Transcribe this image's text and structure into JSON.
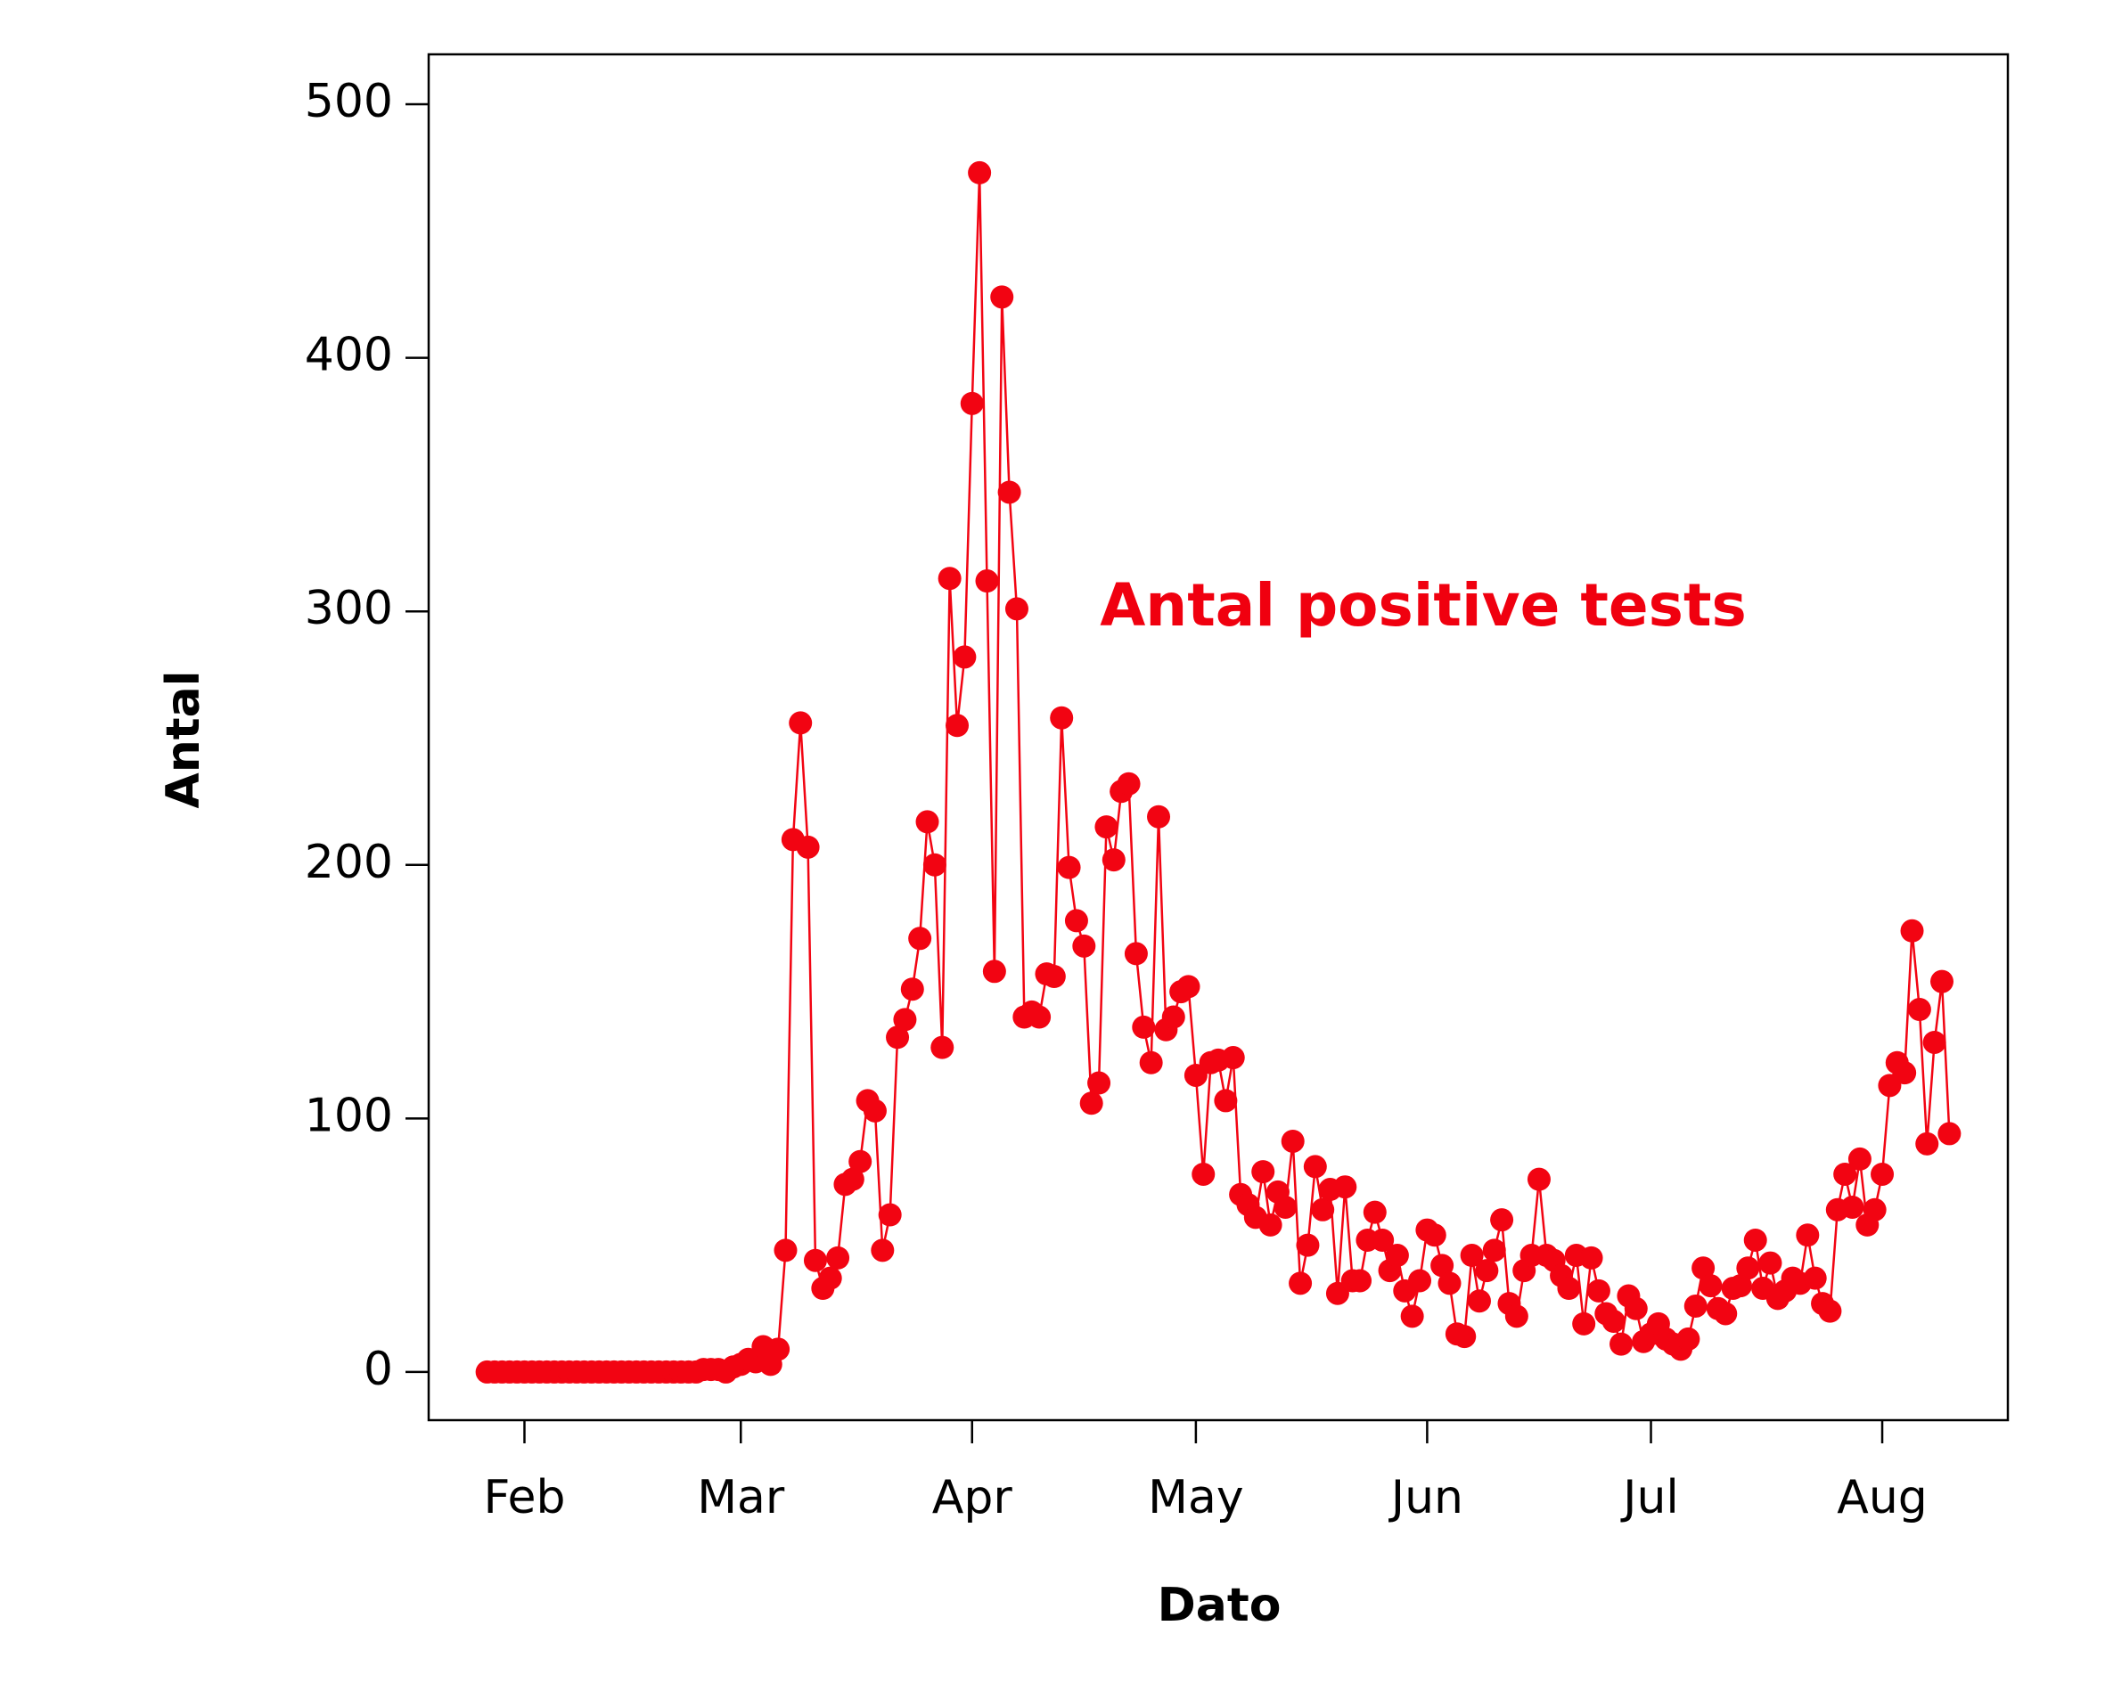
{
  "chart_data": {
    "type": "line",
    "xlabel": "Dato",
    "ylabel": "Antal",
    "annotation": "Antal positive tests",
    "color": "#f20412",
    "x": [
      27,
      28,
      29,
      30,
      31,
      32,
      33,
      34,
      35,
      36,
      37,
      38,
      39,
      40,
      41,
      42,
      43,
      44,
      45,
      46,
      47,
      48,
      49,
      50,
      51,
      52,
      53,
      54,
      55,
      56,
      57,
      58,
      59,
      60,
      61,
      62,
      63,
      64,
      65,
      66,
      67,
      68,
      69,
      70,
      71,
      72,
      73,
      74,
      75,
      76,
      77,
      78,
      79,
      80,
      81,
      82,
      83,
      84,
      85,
      86,
      87,
      88,
      89,
      90,
      91,
      92,
      93,
      94,
      95,
      96,
      97,
      98,
      99,
      100,
      101,
      102,
      103,
      104,
      105,
      106,
      107,
      108,
      109,
      110,
      111,
      112,
      113,
      114,
      115,
      116,
      117,
      118,
      119,
      120,
      121,
      122,
      123,
      124,
      125,
      126,
      127,
      128,
      129,
      130,
      131,
      132,
      133,
      134,
      135,
      136,
      137,
      138,
      139,
      140,
      141,
      142,
      143,
      144,
      145,
      146,
      147,
      148,
      149,
      150,
      151,
      152,
      153,
      154,
      155,
      156,
      157,
      158,
      159,
      160,
      161,
      162,
      163,
      164,
      165,
      166,
      167,
      168,
      169,
      170,
      171,
      172,
      173,
      174,
      175,
      176,
      177,
      178,
      179,
      180,
      181,
      182,
      183,
      184,
      185,
      186,
      187,
      188,
      189,
      190,
      191,
      192,
      193,
      194,
      195,
      196,
      197,
      198,
      199,
      200,
      201,
      202,
      203,
      204,
      205,
      206,
      207,
      208,
      209,
      210,
      211,
      212,
      213,
      214,
      215,
      216,
      217,
      218,
      219,
      220,
      221,
      222,
      223
    ],
    "values": [
      0,
      0,
      0,
      0,
      0,
      0,
      0,
      0,
      0,
      0,
      0,
      0,
      0,
      0,
      0,
      0,
      0,
      0,
      0,
      0,
      0,
      0,
      0,
      0,
      0,
      0,
      0,
      0,
      0,
      1,
      1,
      1,
      0,
      2,
      3,
      5,
      4,
      10,
      3,
      9,
      48,
      210,
      256,
      207,
      44,
      33,
      37,
      45,
      74,
      76,
      83,
      107,
      103,
      48,
      62,
      132,
      139,
      151,
      171,
      217,
      200,
      128,
      313,
      255,
      282,
      382,
      473,
      312,
      158,
      424,
      347,
      301,
      140,
      142,
      140,
      157,
      156,
      258,
      199,
      178,
      168,
      106,
      114,
      215,
      202,
      229,
      232,
      165,
      136,
      122,
      219,
      135,
      140,
      150,
      152,
      117,
      78,
      122,
      123,
      107,
      124,
      70,
      66,
      61,
      79,
      58,
      71,
      65,
      91,
      35,
      50,
      81,
      64,
      72,
      31,
      73,
      36,
      36,
      52,
      63,
      52,
      40,
      46,
      32,
      22,
      36,
      56,
      54,
      42,
      35,
      15,
      14,
      46,
      28,
      40,
      48,
      60,
      27,
      22,
      40,
      46,
      76,
      46,
      44,
      38,
      33,
      46,
      19,
      45,
      32,
      23,
      20,
      11,
      30,
      25,
      12,
      15,
      19,
      13,
      11,
      9,
      13,
      26,
      41,
      34,
      25,
      23,
      33,
      34,
      41,
      52,
      33,
      43,
      29,
      32,
      37,
      35,
      54,
      37,
      27,
      24,
      64,
      78,
      65,
      84,
      58,
      64,
      78,
      113,
      122,
      118,
      174,
      143,
      90,
      130,
      154,
      94
    ],
    "xlim": [
      19.16,
      230.84
    ],
    "xticks": [
      {
        "value": 32,
        "label": "Feb"
      },
      {
        "value": 61,
        "label": "Mar"
      },
      {
        "value": 92,
        "label": "Apr"
      },
      {
        "value": 122,
        "label": "May"
      },
      {
        "value": 153,
        "label": "Jun"
      },
      {
        "value": 183,
        "label": "Jul"
      },
      {
        "value": 214,
        "label": "Aug"
      }
    ],
    "ylim": [
      -19,
      519.7
    ],
    "yticks": [
      0,
      100,
      200,
      300,
      400,
      500
    ]
  }
}
